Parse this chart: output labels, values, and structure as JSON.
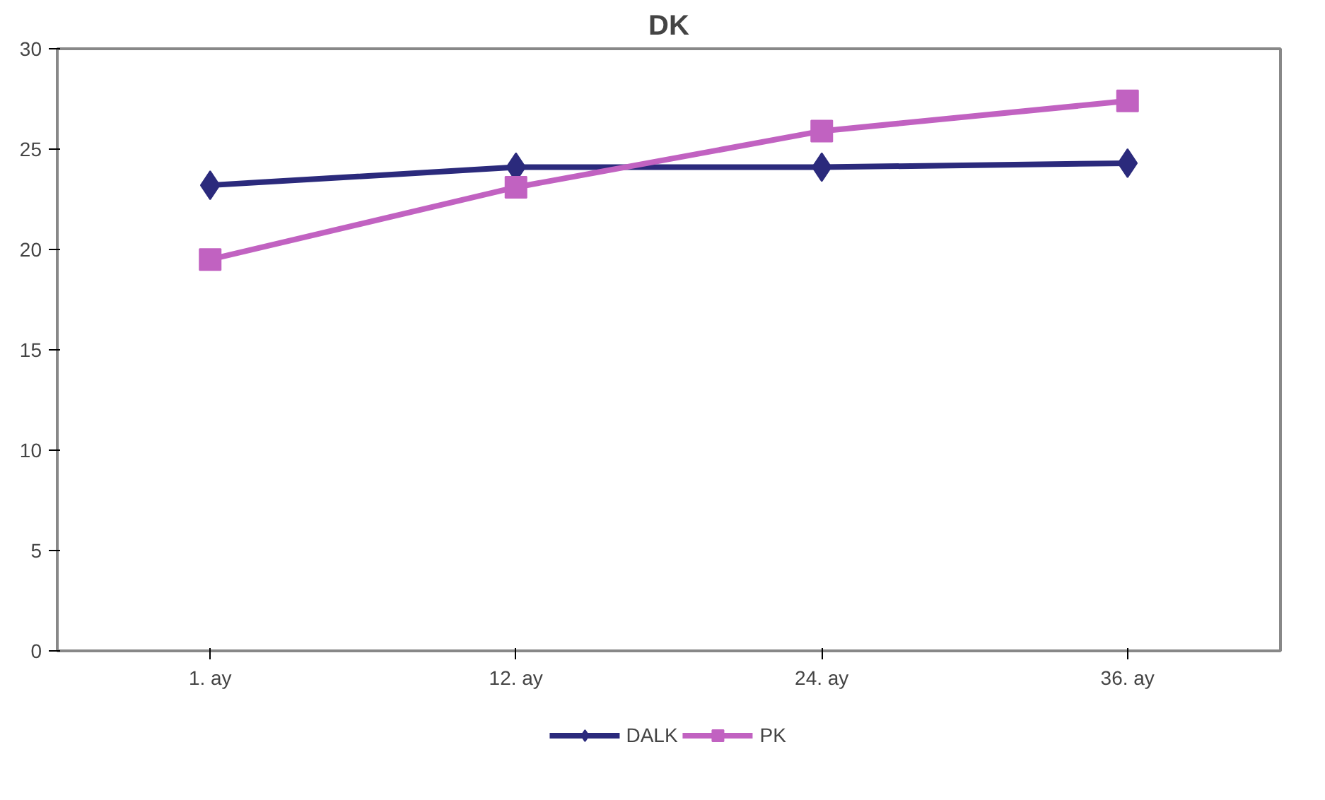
{
  "chart_data": {
    "type": "line",
    "title": "DK",
    "categories": [
      "1. ay",
      "12. ay",
      "24. ay",
      "36. ay"
    ],
    "series": [
      {
        "name": "DALK",
        "color": "#2b2a7c",
        "marker": "diamond",
        "values": [
          23.2,
          24.1,
          24.1,
          24.3
        ]
      },
      {
        "name": "PK",
        "color": "#c162c1",
        "marker": "square",
        "values": [
          19.5,
          23.1,
          25.9,
          27.4
        ]
      }
    ],
    "ylim": [
      0,
      30
    ],
    "yticks": [
      0,
      5,
      10,
      15,
      20,
      25,
      30
    ],
    "grid": false,
    "legend": "bottom"
  }
}
